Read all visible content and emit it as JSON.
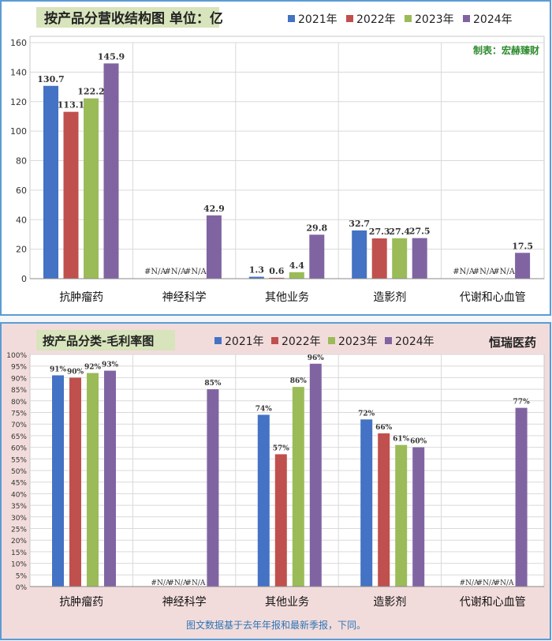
{
  "chart_data": [
    {
      "type": "bar",
      "title": "按产品分营收结构图 单位：亿",
      "watermark": "制表：宏赫臻财",
      "categories": [
        "抗肿瘤药",
        "神经科学",
        "其他业务",
        "造影剂",
        "代谢和心血管"
      ],
      "ylim": [
        0,
        160
      ],
      "yticks": [
        "0",
        "20",
        "40",
        "60",
        "80",
        "100",
        "120",
        "140",
        "160"
      ],
      "grid": true,
      "legend_position": "top",
      "series": [
        {
          "name": "2021年",
          "color": "#4472c4",
          "values": [
            130.7,
            null,
            1.3,
            32.7,
            null
          ],
          "labels": [
            "130.7",
            "#N/A",
            "1.3",
            "32.7",
            "#N/A"
          ]
        },
        {
          "name": "2022年",
          "color": "#c0504d",
          "values": [
            113.1,
            null,
            0.6,
            27.3,
            null
          ],
          "labels": [
            "113.1",
            "#N/A",
            "0.6",
            "27.3",
            "#N/A"
          ]
        },
        {
          "name": "2023年",
          "color": "#9bbb59",
          "values": [
            122.2,
            null,
            4.4,
            27.4,
            null
          ],
          "labels": [
            "122.2",
            "#N/A",
            "4.4",
            "27.4",
            "#N/A"
          ]
        },
        {
          "name": "2024年",
          "color": "#8064a2",
          "values": [
            145.9,
            42.9,
            29.8,
            27.5,
            17.5
          ],
          "labels": [
            "145.9",
            "42.9",
            "29.8",
            "27.5",
            "17.5"
          ]
        }
      ]
    },
    {
      "type": "bar",
      "title": "按产品分类-毛利率图",
      "company": "恒瑞医药",
      "categories": [
        "抗肿瘤药",
        "神经科学",
        "其他业务",
        "造影剂",
        "代谢和心血管"
      ],
      "ylim": [
        0,
        100
      ],
      "yticks": [
        "0%",
        "5%",
        "10%",
        "15%",
        "20%",
        "25%",
        "30%",
        "35%",
        "40%",
        "45%",
        "50%",
        "55%",
        "60%",
        "65%",
        "70%",
        "75%",
        "80%",
        "85%",
        "90%",
        "95%",
        "100%"
      ],
      "grid": true,
      "legend_position": "top",
      "series": [
        {
          "name": "2021年",
          "color": "#4472c4",
          "values": [
            91,
            null,
            74,
            72,
            null
          ],
          "labels": [
            "91%",
            "#N/A",
            "74%",
            "72%",
            "#N/A"
          ]
        },
        {
          "name": "2022年",
          "color": "#c0504d",
          "values": [
            90,
            null,
            57,
            66,
            null
          ],
          "labels": [
            "90%",
            "#N/A",
            "57%",
            "66%",
            "#N/A"
          ]
        },
        {
          "name": "2023年",
          "color": "#9bbb59",
          "values": [
            92,
            null,
            86,
            61,
            null
          ],
          "labels": [
            "92%",
            "#N/A",
            "86%",
            "61%",
            "#N/A"
          ]
        },
        {
          "name": "2024年",
          "color": "#8064a2",
          "values": [
            93,
            85,
            96,
            60,
            77
          ],
          "labels": [
            "93%",
            "85%",
            "96%",
            "60%",
            "77%"
          ]
        }
      ]
    }
  ],
  "footer": "图文数据基于去年年报和最新季报，下同。"
}
